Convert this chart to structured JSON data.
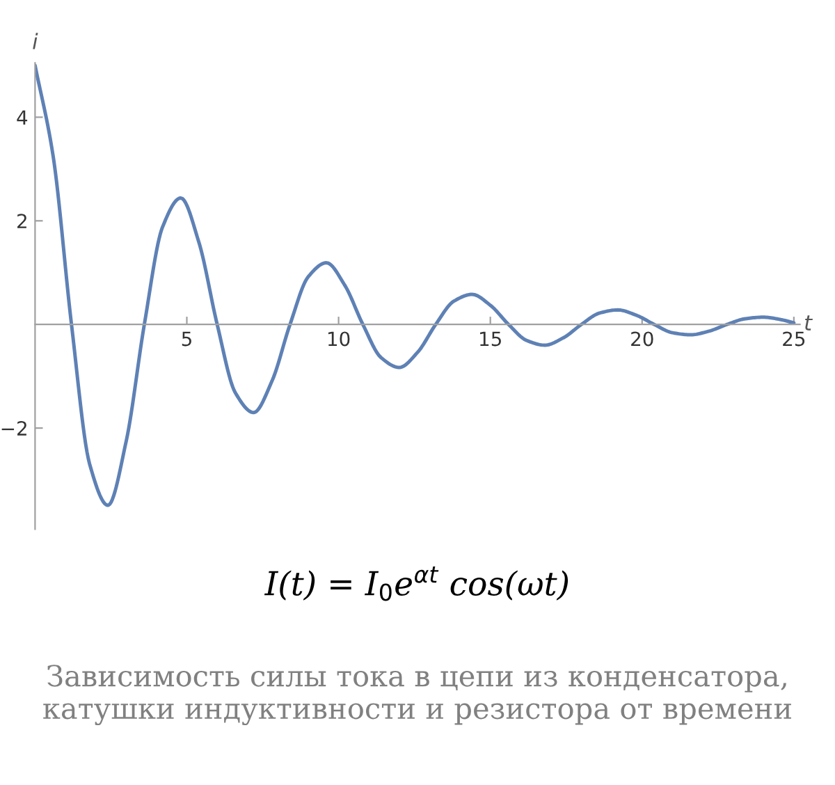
{
  "chart_data": {
    "type": "line",
    "xlabel": "t",
    "ylabel": "i",
    "x": [
      0,
      0.6,
      1.2,
      1.8,
      2.4,
      3.0,
      3.6,
      4.2,
      4.8,
      5.4,
      6.0,
      6.6,
      7.2,
      7.8,
      8.4,
      9.0,
      9.6,
      10.2,
      10.8,
      11.4,
      12.0,
      12.6,
      13.2,
      13.8,
      14.4,
      15.0,
      15.6,
      16.2,
      16.8,
      17.4,
      18.0,
      18.6,
      19.2,
      19.8,
      20.4,
      21.0,
      21.6,
      22.2,
      22.8,
      23.4,
      24.0,
      24.6,
      25.0
    ],
    "series": [
      {
        "color": "#5e81b5",
        "values": [
          5.0,
          3.23,
          0,
          -2.7,
          -3.49,
          -2.26,
          0,
          1.88,
          2.44,
          1.58,
          0,
          -1.32,
          -1.7,
          -1.1,
          0,
          0.92,
          1.19,
          0.76,
          0,
          -0.64,
          -0.83,
          -0.54,
          0,
          0.45,
          0.58,
          0.37,
          0,
          -0.31,
          -0.4,
          -0.26,
          0,
          0.22,
          0.28,
          0.18,
          0,
          -0.16,
          -0.2,
          -0.13,
          0,
          0.11,
          0.14,
          0.09,
          0.03
        ]
      }
    ],
    "xlim": [
      0,
      25.2
    ],
    "ylim": [
      -3.95,
      5.05
    ],
    "xticks": [
      5,
      10,
      15,
      20,
      25
    ],
    "yticks": [
      -2,
      2,
      4
    ],
    "grid": false,
    "legend": false,
    "annotations": [
      "I(t) = I$_{0}$e$^{αt}$ cos(ωt)",
      "Зависимость силы тока в цепи из конденсатора, катушки индуктивности и резистора от времени"
    ]
  }
}
